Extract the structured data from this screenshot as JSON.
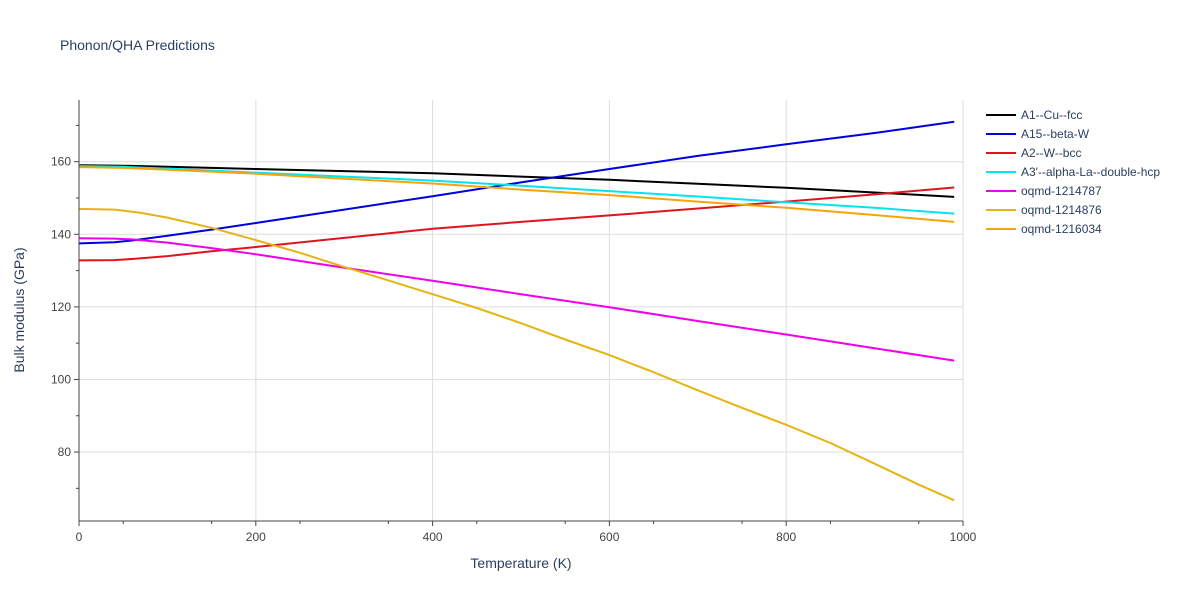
{
  "chart_data": {
    "type": "line",
    "title": "Phonon/QHA Predictions",
    "xlabel": "Temperature (K)",
    "ylabel": "Bulk modulus (GPa)",
    "xlim": [
      0,
      1000
    ],
    "ylim": [
      61,
      177
    ],
    "x_ticks": [
      0,
      200,
      400,
      600,
      800,
      1000
    ],
    "y_ticks": [
      80,
      100,
      120,
      140,
      160
    ],
    "grid": true,
    "legend_position": "top-right",
    "series": [
      {
        "name": "A1--Cu--fcc",
        "color": "#000000",
        "points": [
          [
            0,
            159.0
          ],
          [
            50,
            158.9
          ],
          [
            100,
            158.6
          ],
          [
            200,
            158.0
          ],
          [
            300,
            157.4
          ],
          [
            400,
            156.8
          ],
          [
            500,
            155.9
          ],
          [
            600,
            155.0
          ],
          [
            700,
            153.9
          ],
          [
            800,
            152.8
          ],
          [
            900,
            151.5
          ],
          [
            990,
            150.3
          ]
        ]
      },
      {
        "name": "A15--beta-W",
        "color": "#0000dd",
        "points": [
          [
            0,
            137.5
          ],
          [
            40,
            137.8
          ],
          [
            60,
            138.3
          ],
          [
            100,
            139.6
          ],
          [
            150,
            141.3
          ],
          [
            200,
            143.1
          ],
          [
            300,
            146.8
          ],
          [
            400,
            150.5
          ],
          [
            500,
            154.3
          ],
          [
            600,
            158.0
          ],
          [
            700,
            161.6
          ],
          [
            800,
            164.8
          ],
          [
            900,
            167.9
          ],
          [
            990,
            171.0
          ]
        ]
      },
      {
        "name": "A2--W--bcc",
        "color": "#e0141e",
        "points": [
          [
            0,
            132.8
          ],
          [
            40,
            132.9
          ],
          [
            60,
            133.2
          ],
          [
            100,
            134.0
          ],
          [
            150,
            135.3
          ],
          [
            200,
            136.5
          ],
          [
            300,
            139.0
          ],
          [
            400,
            141.5
          ],
          [
            500,
            143.4
          ],
          [
            600,
            145.2
          ],
          [
            700,
            147.1
          ],
          [
            800,
            149.0
          ],
          [
            900,
            151.0
          ],
          [
            990,
            152.9
          ]
        ]
      },
      {
        "name": "A3'--alpha-La--double-hcp",
        "color": "#00e5ee",
        "points": [
          [
            0,
            158.8
          ],
          [
            50,
            158.6
          ],
          [
            100,
            158.1
          ],
          [
            200,
            157.0
          ],
          [
            300,
            155.9
          ],
          [
            400,
            154.8
          ],
          [
            500,
            153.4
          ],
          [
            600,
            151.9
          ],
          [
            700,
            150.4
          ],
          [
            800,
            148.8
          ],
          [
            900,
            147.3
          ],
          [
            990,
            145.7
          ]
        ]
      },
      {
        "name": "oqmd-1214787",
        "color": "#ee00ee",
        "points": [
          [
            0,
            138.9
          ],
          [
            40,
            138.8
          ],
          [
            60,
            138.6
          ],
          [
            100,
            137.7
          ],
          [
            150,
            136.2
          ],
          [
            200,
            134.5
          ],
          [
            300,
            130.8
          ],
          [
            400,
            127.2
          ],
          [
            500,
            123.5
          ],
          [
            600,
            119.9
          ],
          [
            700,
            116.1
          ],
          [
            800,
            112.4
          ],
          [
            900,
            108.6
          ],
          [
            990,
            105.2
          ]
        ]
      },
      {
        "name": "oqmd-1214876",
        "color": "#e5b412",
        "points": [
          [
            0,
            147.0
          ],
          [
            40,
            146.8
          ],
          [
            70,
            145.9
          ],
          [
            100,
            144.6
          ],
          [
            150,
            141.8
          ],
          [
            200,
            138.4
          ],
          [
            250,
            134.9
          ],
          [
            300,
            131.0
          ],
          [
            350,
            127.3
          ],
          [
            400,
            123.5
          ],
          [
            450,
            119.7
          ],
          [
            500,
            115.5
          ],
          [
            550,
            111.0
          ],
          [
            600,
            106.7
          ],
          [
            650,
            102.0
          ],
          [
            700,
            97.0
          ],
          [
            750,
            92.2
          ],
          [
            800,
            87.5
          ],
          [
            850,
            82.5
          ],
          [
            900,
            76.8
          ],
          [
            950,
            71.0
          ],
          [
            990,
            66.7
          ]
        ]
      },
      {
        "name": "oqmd-1216034",
        "color": "#f5a40a",
        "points": [
          [
            0,
            158.5
          ],
          [
            50,
            158.3
          ],
          [
            100,
            157.8
          ],
          [
            200,
            156.7
          ],
          [
            300,
            155.3
          ],
          [
            400,
            154.0
          ],
          [
            500,
            152.3
          ],
          [
            600,
            150.8
          ],
          [
            700,
            149.0
          ],
          [
            800,
            147.3
          ],
          [
            900,
            145.3
          ],
          [
            990,
            143.4
          ]
        ]
      }
    ]
  }
}
